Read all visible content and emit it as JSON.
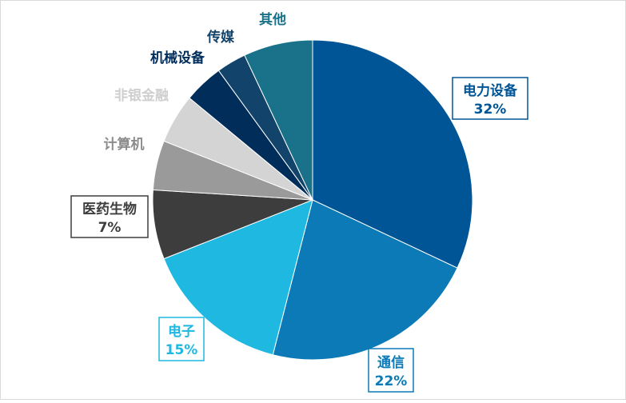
{
  "chart_data": {
    "type": "pie",
    "title": "",
    "legend": "none",
    "start_angle_deg": 0,
    "direction": "clockwise",
    "slices": [
      {
        "label": "电力设备",
        "value": 32,
        "value_label": "32%",
        "color": "#005596"
      },
      {
        "label": "通信",
        "value": 22,
        "value_label": "22%",
        "color": "#0b7ab6"
      },
      {
        "label": "电子",
        "value": 15,
        "value_label": "15%",
        "color": "#1fb8e1"
      },
      {
        "label": "医药生物",
        "value": 7,
        "value_label": "7%",
        "color": "#3d3d3d"
      },
      {
        "label": "计算机",
        "value": 5,
        "value_label": "",
        "color": "#9a9a9a"
      },
      {
        "label": "非银金融",
        "value": 5,
        "value_label": "",
        "color": "#d4d4d4"
      },
      {
        "label": "机械设备",
        "value": 4,
        "value_label": "",
        "color": "#002d5a"
      },
      {
        "label": "传媒",
        "value": 3,
        "value_label": "",
        "color": "#12436a"
      },
      {
        "label": "其他",
        "value": 7,
        "value_label": "",
        "color": "#19728a"
      }
    ]
  }
}
